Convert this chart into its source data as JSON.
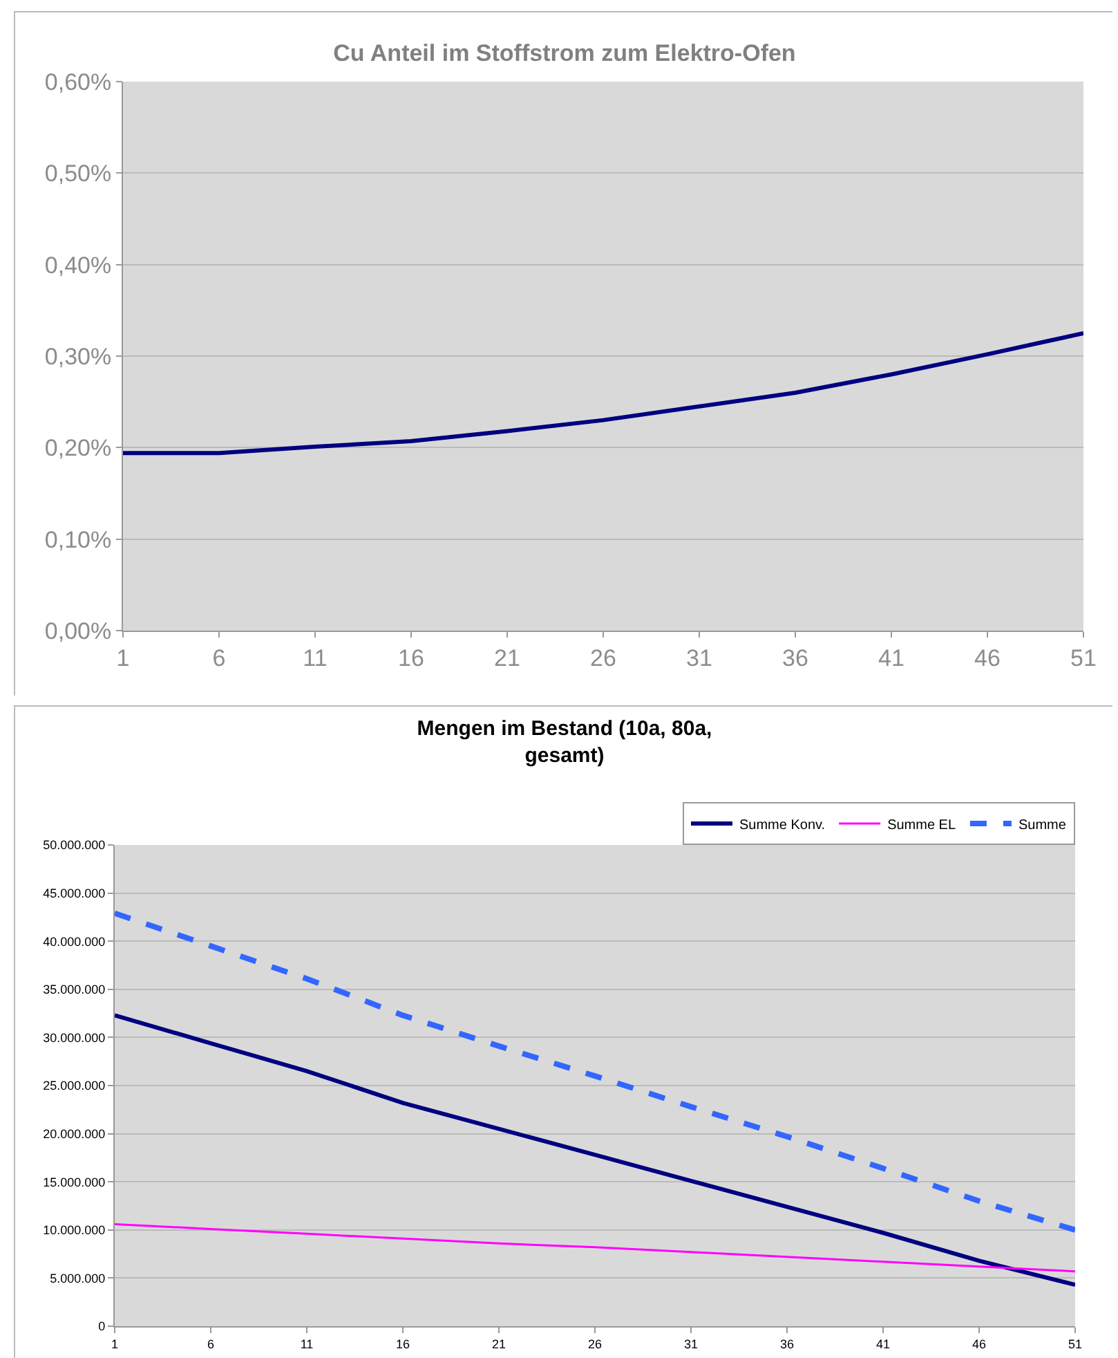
{
  "chart_data": [
    {
      "type": "line",
      "title": "Cu Anteil im Stoffstrom zum Elektro-Ofen",
      "x": [
        1,
        6,
        11,
        16,
        21,
        26,
        31,
        36,
        41,
        46,
        51
      ],
      "series": [
        {
          "color": "#000080",
          "values": [
            0.194,
            0.194,
            0.201,
            0.207,
            0.218,
            0.23,
            0.245,
            0.26,
            0.28,
            0.302,
            0.325
          ]
        }
      ],
      "xlim": [
        1,
        51
      ],
      "xticks": [
        1,
        6,
        11,
        16,
        21,
        26,
        31,
        36,
        41,
        46,
        51
      ],
      "ylim": [
        0,
        0.6
      ],
      "yticks": [
        {
          "value": 0,
          "label": "0,00%"
        },
        {
          "value": 0.1,
          "label": "0,10%"
        },
        {
          "value": 0.2,
          "label": "0,20%"
        },
        {
          "value": 0.3,
          "label": "0,30%"
        },
        {
          "value": 0.4,
          "label": "0,40%"
        },
        {
          "value": 0.5,
          "label": "0,50%"
        },
        {
          "value": 0.6,
          "label": "0,60%"
        }
      ],
      "grid": "y",
      "legend": false,
      "marker": "none",
      "line_style": "solid"
    },
    {
      "type": "line",
      "title": "Mengen im Bestand (10a, 80a,\ngesamt)",
      "x": [
        1,
        6,
        11,
        16,
        21,
        26,
        31,
        36,
        41,
        46,
        51
      ],
      "series": [
        {
          "name": "Summe Konv.",
          "color": "#000080",
          "line_style": "solid",
          "values": [
            32300000,
            29400000,
            26500000,
            23200000,
            20500000,
            17800000,
            15100000,
            12400000,
            9700000,
            6800000,
            4300000
          ]
        },
        {
          "name": "Summe EL",
          "color": "#ff00ff",
          "line_style": "solid",
          "values": [
            10600000,
            10100000,
            9600000,
            9100000,
            8600000,
            8200000,
            7700000,
            7200000,
            6700000,
            6200000,
            5700000
          ]
        },
        {
          "name": "Summe",
          "color": "#3366ff",
          "line_style": "dashed",
          "values": [
            42900000,
            39500000,
            36100000,
            32300000,
            29100000,
            26000000,
            22800000,
            19700000,
            16400000,
            13000000,
            10000000
          ]
        }
      ],
      "xlim": [
        1,
        51
      ],
      "xticks": [
        1,
        6,
        11,
        16,
        21,
        26,
        31,
        36,
        41,
        46,
        51
      ],
      "ylim": [
        0,
        50000000
      ],
      "yticks": [
        0,
        {
          "value": 5000000,
          "label": "5.000.000"
        },
        {
          "value": 10000000,
          "label": "10.000.000"
        },
        {
          "value": 15000000,
          "label": "15.000.000"
        },
        {
          "value": 20000000,
          "label": "20.000.000"
        },
        {
          "value": 25000000,
          "label": "25.000.000"
        },
        {
          "value": 30000000,
          "label": "30.000.000"
        },
        {
          "value": 35000000,
          "label": "35.000.000"
        },
        {
          "value": 40000000,
          "label": "40.000.000"
        },
        {
          "value": 45000000,
          "label": "45.000.000"
        },
        {
          "value": 50000000,
          "label": "50.000.000"
        }
      ],
      "grid": "y",
      "legend": "top right",
      "marker": "none"
    }
  ]
}
